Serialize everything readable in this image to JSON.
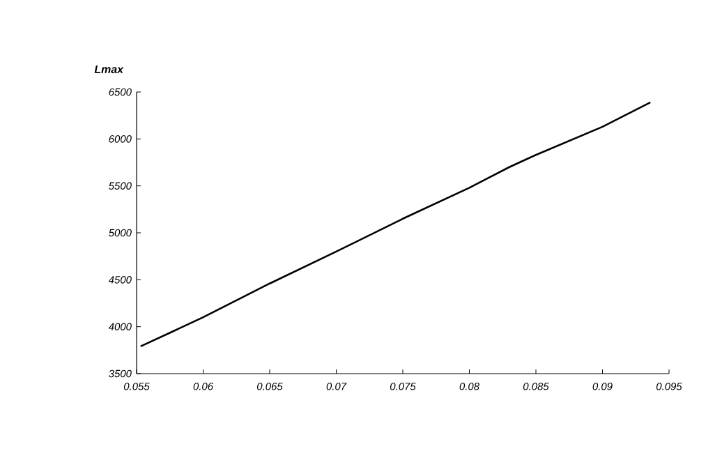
{
  "chart_data": {
    "type": "line",
    "ylabel": "Lmax",
    "x": [
      0.0553,
      0.06,
      0.065,
      0.07,
      0.075,
      0.08,
      0.083,
      0.085,
      0.09,
      0.0936
    ],
    "series": [
      {
        "color": "#000000",
        "values": [
          3790,
          4100,
          4460,
          4800,
          5150,
          5480,
          5700,
          5830,
          6130,
          6390
        ]
      }
    ],
    "xlim": [
      0.055,
      0.095
    ],
    "xticks": [
      0.055,
      0.06,
      0.065,
      0.07,
      0.075,
      0.08,
      0.085,
      0.09,
      0.095
    ],
    "ylim": [
      3500,
      6500
    ],
    "yticks": [
      3500,
      4000,
      4500,
      5000,
      5500,
      6000,
      6500
    ],
    "marker": "none",
    "line_style": "solid"
  }
}
